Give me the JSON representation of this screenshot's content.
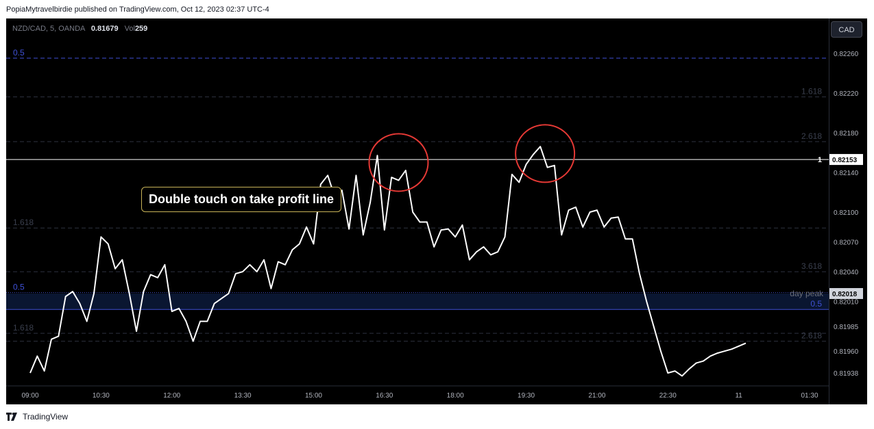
{
  "publisher_line": "PopiaMytravelbirdie published on TradingView.com, Oct 12, 2023 02:37 UTC-4",
  "footer_brand": "TradingView",
  "currency_button": "CAD",
  "legend": {
    "symbol": "NZD/CAD, 5, OANDA",
    "price": "0.81679",
    "vol_label": "Vol",
    "vol": "259"
  },
  "annotation": "Double touch on take profit line",
  "colors": {
    "background": "#000000",
    "price_line": "#ffffff",
    "fib_blue": "#3f51d6",
    "circle": "#e53935",
    "annotation_border": "#c9b458"
  },
  "chart_data": {
    "type": "line",
    "ylim": [
      0.81925,
      0.82295
    ],
    "y_ticks": [
      "0.82260",
      "0.82220",
      "0.82180",
      "0.82140",
      "0.82100",
      "0.82070",
      "0.82040",
      "0.82010",
      "0.81985",
      "0.81960",
      "0.81938"
    ],
    "x_ticks": [
      "09:00",
      "10:30",
      "12:00",
      "13:30",
      "15:00",
      "16:30",
      "18:00",
      "19:30",
      "21:00",
      "22:30",
      "11",
      "01:30"
    ],
    "x": [
      0,
      3,
      6,
      9,
      12,
      15,
      18,
      21,
      24,
      27,
      30,
      33,
      36,
      39,
      42,
      45,
      48,
      51,
      54,
      57,
      60,
      63,
      66,
      69,
      72,
      75,
      78,
      81,
      84,
      87,
      90,
      93,
      96,
      99,
      102,
      105,
      108,
      111,
      114,
      117,
      120,
      123,
      126,
      129,
      132,
      135,
      138,
      141,
      144,
      147,
      150,
      153,
      156,
      159,
      162,
      165,
      168,
      171,
      174,
      177,
      180,
      183,
      186,
      189,
      192,
      195,
      198,
      201,
      204,
      207,
      210,
      213,
      216,
      219,
      222,
      225,
      228,
      231,
      234,
      237,
      240,
      243,
      246,
      249,
      252,
      255,
      258,
      261,
      264,
      267,
      270,
      273,
      276,
      279,
      282,
      285,
      288,
      291,
      294,
      297,
      300,
      303
    ],
    "x_tick_positions": [
      0,
      30,
      60,
      90,
      120,
      150,
      180,
      210,
      240,
      270,
      300,
      330
    ],
    "y": [
      0.81938,
      0.81955,
      0.8194,
      0.81972,
      0.81975,
      0.82015,
      0.8202,
      0.82008,
      0.8199,
      0.82018,
      0.82075,
      0.82068,
      0.82043,
      0.82052,
      0.82018,
      0.8198,
      0.8202,
      0.82037,
      0.82034,
      0.82047,
      0.82,
      0.82003,
      0.8199,
      0.8197,
      0.8199,
      0.8199,
      0.82008,
      0.82013,
      0.82018,
      0.82038,
      0.8204,
      0.82047,
      0.8204,
      0.82052,
      0.82023,
      0.8205,
      0.82047,
      0.82062,
      0.82068,
      0.82085,
      0.82068,
      0.82128,
      0.82137,
      0.82115,
      0.82122,
      0.82083,
      0.82137,
      0.82077,
      0.8211,
      0.82157,
      0.82082,
      0.82135,
      0.82132,
      0.82142,
      0.821,
      0.8209,
      0.8209,
      0.82065,
      0.82082,
      0.82083,
      0.82075,
      0.82087,
      0.82052,
      0.8206,
      0.82065,
      0.82057,
      0.8206,
      0.82075,
      0.82138,
      0.8213,
      0.82148,
      0.82158,
      0.82166,
      0.82145,
      0.82147,
      0.82077,
      0.82102,
      0.82105,
      0.82085,
      0.821,
      0.82102,
      0.82085,
      0.82094,
      0.82095,
      0.82073,
      0.82073,
      0.82038,
      0.8201,
      0.81985,
      0.8196,
      0.81938,
      0.8194,
      0.81935,
      0.81942,
      0.81948,
      0.8195,
      0.81955,
      0.81958,
      0.8196,
      0.81962,
      0.81965,
      0.81968
    ]
  },
  "fib_lines": [
    {
      "label": "0.5",
      "y": 0.82255,
      "side": "left",
      "style": "dash",
      "color": "#3f51d6"
    },
    {
      "label": "1.618",
      "y": 0.82216,
      "side": "right",
      "style": "dash",
      "color": "#2e3240"
    },
    {
      "label": "2.618",
      "y": 0.82171,
      "side": "right",
      "style": "dash",
      "color": "#2e3240"
    },
    {
      "label": "1.618",
      "y": 0.82084,
      "side": "left",
      "style": "dash",
      "color": "#2e3240"
    },
    {
      "label": "3.618",
      "y": 0.8204,
      "side": "right",
      "style": "dash",
      "color": "#2e3240"
    },
    {
      "label": "0.5",
      "y": 0.82019,
      "side": "left",
      "style": "dot",
      "color": "#3f51d6"
    },
    {
      "label": "0.5",
      "y": 0.82002,
      "side": "right",
      "style": "solid",
      "color": "#3f51d6"
    },
    {
      "label": "1.618",
      "y": 0.81978,
      "side": "left",
      "style": "dash",
      "color": "#2e3240"
    },
    {
      "label": "2.618",
      "y": 0.8197,
      "side": "right",
      "style": "dash",
      "color": "#2e3240"
    }
  ],
  "take_profit": {
    "label": "1",
    "value": 0.82153,
    "price_label": "0.82153"
  },
  "day_peak": {
    "label": "day peak",
    "value": 0.82018,
    "price_label": "0.82018"
  },
  "circles": [
    {
      "x": 156,
      "y": 0.8215
    },
    {
      "x": 218,
      "y": 0.82159
    }
  ]
}
